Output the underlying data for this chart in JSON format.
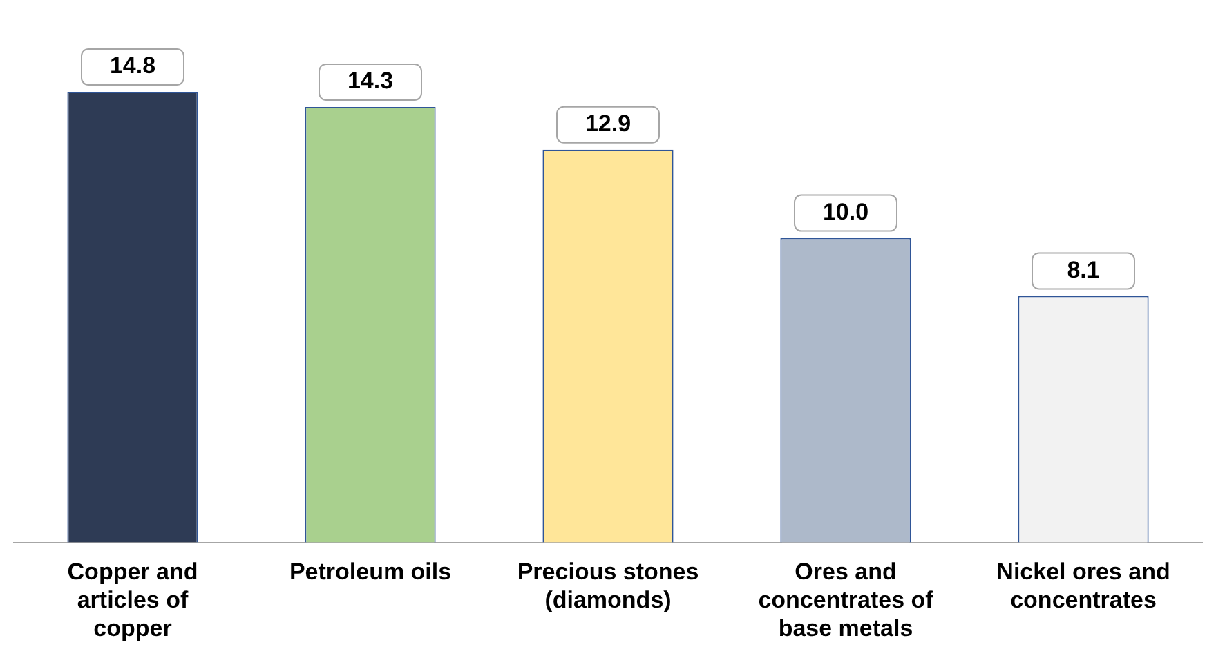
{
  "chart_data": {
    "type": "bar",
    "categories": [
      "Copper and articles of copper",
      "Petroleum oils",
      "Precious stones (diamonds)",
      "Ores and concentrates of base metals",
      "Nickel ores and concentrates"
    ],
    "values": [
      14.8,
      14.3,
      12.9,
      10.0,
      8.1
    ],
    "colors": [
      "#2e3b55",
      "#a9d08e",
      "#ffe699",
      "#adb9ca",
      "#f2f2f2"
    ],
    "value_labels": [
      "14.8",
      "14.3",
      "12.9",
      "10.0",
      "8.1"
    ],
    "data_labels": true,
    "grid": false,
    "legend": false
  }
}
